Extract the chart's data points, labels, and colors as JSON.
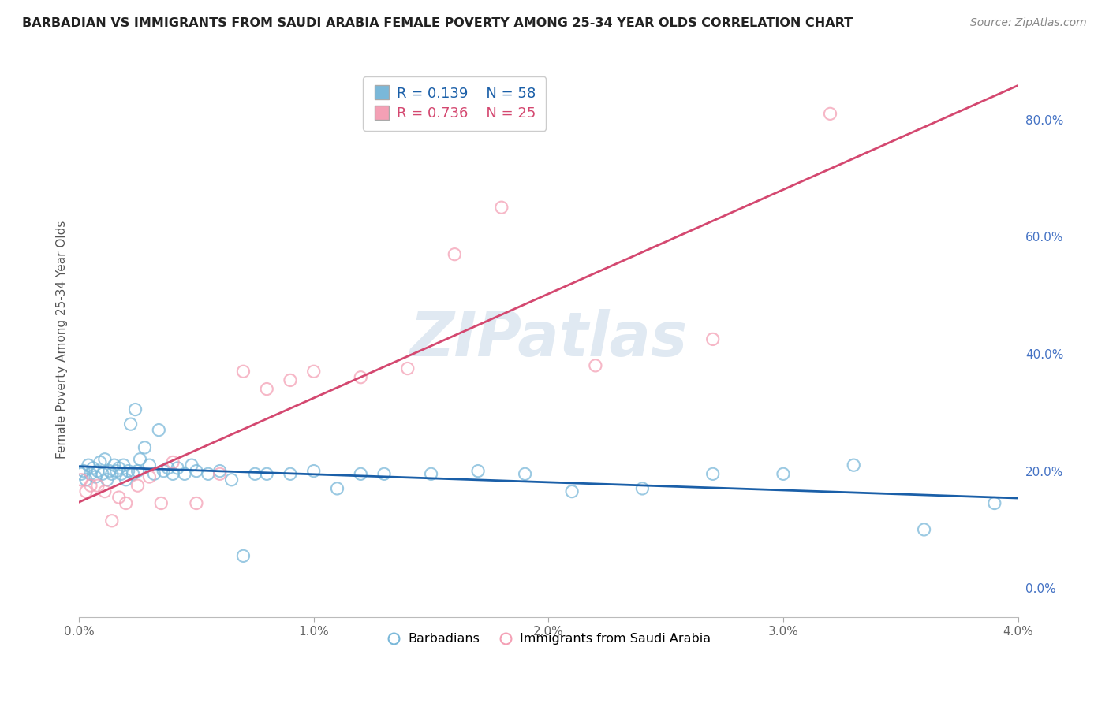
{
  "title": "BARBADIAN VS IMMIGRANTS FROM SAUDI ARABIA FEMALE POVERTY AMONG 25-34 YEAR OLDS CORRELATION CHART",
  "source": "Source: ZipAtlas.com",
  "ylabel": "Female Poverty Among 25-34 Year Olds",
  "xlim": [
    0.0,
    0.04
  ],
  "ylim": [
    -0.05,
    0.9
  ],
  "yticks_right": [
    0.0,
    0.2,
    0.4,
    0.6,
    0.8
  ],
  "ytick_labels_right": [
    "0.0%",
    "20.0%",
    "40.0%",
    "60.0%",
    "80.0%"
  ],
  "xtick_labels": [
    "0.0%",
    "1.0%",
    "2.0%",
    "3.0%",
    "4.0%"
  ],
  "xticks": [
    0.0,
    0.01,
    0.02,
    0.03,
    0.04
  ],
  "legend_r1": "R = 0.139",
  "legend_n1": "N = 58",
  "legend_r2": "R = 0.736",
  "legend_n2": "N = 25",
  "blue_color": "#7ab8d9",
  "pink_color": "#f4a0b5",
  "blue_line_color": "#1a5fa8",
  "pink_line_color": "#d44870",
  "background_color": "#ffffff",
  "grid_color": "#d0d0d0",
  "watermark": "ZIPatlas",
  "barbadian_x": [
    0.0001,
    0.0002,
    0.0003,
    0.0004,
    0.0005,
    0.0006,
    0.0007,
    0.0008,
    0.0009,
    0.001,
    0.0011,
    0.0012,
    0.0013,
    0.0014,
    0.0015,
    0.0016,
    0.0017,
    0.0018,
    0.0019,
    0.002,
    0.0021,
    0.0022,
    0.0023,
    0.0024,
    0.0025,
    0.0026,
    0.0028,
    0.003,
    0.0032,
    0.0034,
    0.0036,
    0.0038,
    0.004,
    0.0042,
    0.0045,
    0.0048,
    0.005,
    0.0055,
    0.006,
    0.0065,
    0.007,
    0.0075,
    0.008,
    0.009,
    0.01,
    0.011,
    0.012,
    0.013,
    0.015,
    0.017,
    0.019,
    0.021,
    0.024,
    0.027,
    0.03,
    0.033,
    0.036,
    0.039
  ],
  "barbadian_y": [
    0.195,
    0.2,
    0.185,
    0.21,
    0.195,
    0.205,
    0.19,
    0.2,
    0.215,
    0.195,
    0.22,
    0.185,
    0.2,
    0.195,
    0.21,
    0.2,
    0.205,
    0.195,
    0.21,
    0.185,
    0.2,
    0.28,
    0.195,
    0.305,
    0.2,
    0.22,
    0.24,
    0.21,
    0.195,
    0.27,
    0.2,
    0.205,
    0.195,
    0.205,
    0.195,
    0.21,
    0.2,
    0.195,
    0.2,
    0.185,
    0.055,
    0.195,
    0.195,
    0.195,
    0.2,
    0.17,
    0.195,
    0.195,
    0.195,
    0.2,
    0.195,
    0.165,
    0.17,
    0.195,
    0.195,
    0.21,
    0.1,
    0.145
  ],
  "saudi_x": [
    0.0001,
    0.0003,
    0.0005,
    0.0008,
    0.0011,
    0.0014,
    0.0017,
    0.002,
    0.0025,
    0.003,
    0.0035,
    0.004,
    0.005,
    0.006,
    0.007,
    0.008,
    0.009,
    0.01,
    0.012,
    0.014,
    0.016,
    0.018,
    0.022,
    0.027,
    0.032
  ],
  "saudi_y": [
    0.185,
    0.165,
    0.175,
    0.175,
    0.165,
    0.115,
    0.155,
    0.145,
    0.175,
    0.19,
    0.145,
    0.215,
    0.145,
    0.195,
    0.37,
    0.34,
    0.355,
    0.37,
    0.36,
    0.375,
    0.57,
    0.65,
    0.38,
    0.425,
    0.81
  ]
}
